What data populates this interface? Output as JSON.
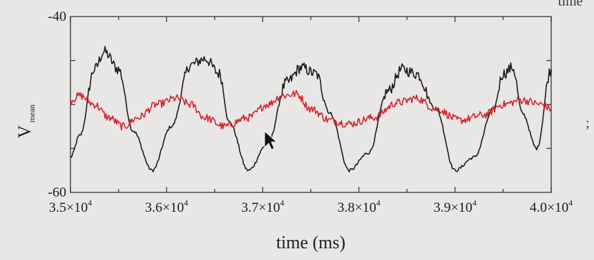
{
  "chart_data": {
    "type": "line",
    "xlabel": "time (ms)",
    "ylabel": {
      "main": "V",
      "sub": "mean"
    },
    "xlim": [
      35000,
      40000
    ],
    "ylim": [
      -60,
      -40
    ],
    "x_ticks": [
      {
        "value": 35000,
        "mantissa": "3.5×10",
        "exp": "4"
      },
      {
        "value": 36000,
        "mantissa": "3.6×10",
        "exp": "4"
      },
      {
        "value": 37000,
        "mantissa": "3.7×10",
        "exp": "4"
      },
      {
        "value": 38000,
        "mantissa": "3.8×10",
        "exp": "4"
      },
      {
        "value": 39000,
        "mantissa": "3.9×10",
        "exp": "4"
      },
      {
        "value": 40000,
        "mantissa": "4.0×10",
        "exp": "4"
      }
    ],
    "y_ticks": [
      {
        "value": -40,
        "label": "-40"
      },
      {
        "value": -60,
        "label": "-60"
      }
    ],
    "series": [
      {
        "color": "#1a1a1a",
        "x": [
          35000,
          35100,
          35250,
          35350,
          35500,
          35650,
          35850,
          36050,
          36250,
          36400,
          36550,
          36650,
          36850,
          37050,
          37250,
          37400,
          37550,
          37700,
          37900,
          38100,
          38300,
          38450,
          38600,
          38800,
          39000,
          39200,
          39400,
          39500,
          39600,
          39700,
          39850,
          40000
        ],
        "y": [
          -56.0,
          -53.5,
          -46.0,
          -44.0,
          -46.0,
          -53.0,
          -57.5,
          -52.5,
          -45.5,
          -44.8,
          -46.5,
          -52.0,
          -57.5,
          -54.5,
          -47.5,
          -45.8,
          -46.5,
          -51.0,
          -57.5,
          -55.5,
          -48.5,
          -46.0,
          -46.5,
          -50.5,
          -57.5,
          -56.0,
          -50.5,
          -46.5,
          -45.8,
          -51.0,
          -55.0,
          -46.0
        ]
      },
      {
        "color": "#d4242a",
        "x": [
          35000,
          35100,
          35250,
          35400,
          35550,
          35700,
          35900,
          36100,
          36250,
          36400,
          36600,
          36850,
          37050,
          37200,
          37350,
          37500,
          37700,
          37900,
          38150,
          38400,
          38600,
          38800,
          39050,
          39300,
          39500,
          39700,
          39900,
          40000
        ],
        "y": [
          -49.5,
          -49.0,
          -50.0,
          -51.5,
          -52.5,
          -51.5,
          -50.0,
          -49.3,
          -50.0,
          -51.5,
          -52.5,
          -51.5,
          -50.0,
          -49.0,
          -48.8,
          -50.5,
          -51.8,
          -52.2,
          -51.5,
          -49.8,
          -49.3,
          -50.5,
          -51.8,
          -51.2,
          -50.0,
          -49.5,
          -50.0,
          -50.5
        ]
      }
    ],
    "edge_fragments": {
      "top_right": "time",
      "right_mark": ";"
    }
  }
}
